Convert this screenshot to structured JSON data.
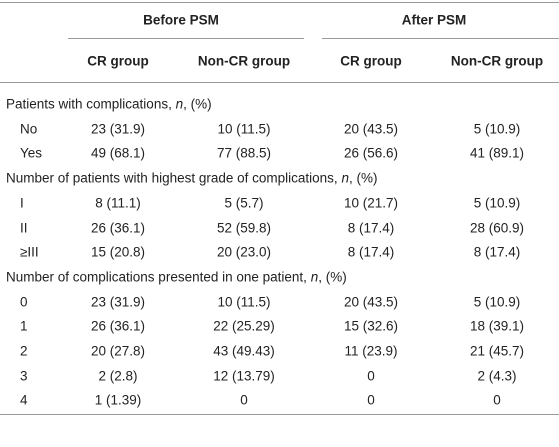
{
  "header": {
    "groups": [
      "Before PSM",
      "After PSM"
    ],
    "columns": [
      "CR group",
      "Non-CR group",
      "CR group",
      "Non-CR group"
    ]
  },
  "sections": [
    {
      "title": [
        "Patients with complications, ",
        "n",
        ", (%)"
      ],
      "rows": [
        {
          "label": "No",
          "cells": [
            "23 (31.9)",
            "10 (11.5)",
            "20 (43.5)",
            "5 (10.9)"
          ]
        },
        {
          "label": "Yes",
          "cells": [
            "49 (68.1)",
            "77 (88.5)",
            "26 (56.6)",
            "41 (89.1)"
          ]
        }
      ]
    },
    {
      "title": [
        "Number of patients with highest grade of complications, ",
        "n",
        ", (%)"
      ],
      "rows": [
        {
          "label": "I",
          "cells": [
            "8 (11.1)",
            "5 (5.7)",
            "10 (21.7)",
            "5 (10.9)"
          ]
        },
        {
          "label": "II",
          "cells": [
            "26 (36.1)",
            "52 (59.8)",
            "8 (17.4)",
            "28 (60.9)"
          ]
        },
        {
          "label": "≥III",
          "cells": [
            "15 (20.8)",
            "20 (23.0)",
            "8 (17.4)",
            "8 (17.4)"
          ]
        }
      ]
    },
    {
      "title": [
        "Number of complications presented in one patient, ",
        "n",
        ", (%)"
      ],
      "rows": [
        {
          "label": "0",
          "cells": [
            "23 (31.9)",
            "10 (11.5)",
            "20 (43.5)",
            "5 (10.9)"
          ]
        },
        {
          "label": "1",
          "cells": [
            "26 (36.1)",
            "22 (25.29)",
            "15 (32.6)",
            "18 (39.1)"
          ]
        },
        {
          "label": "2",
          "cells": [
            "20 (27.8)",
            "43 (49.43)",
            "11 (23.9)",
            "21 (45.7)"
          ]
        },
        {
          "label": "3",
          "cells": [
            "2 (2.8)",
            "12 (13.79)",
            "0",
            "2 (4.3)"
          ]
        },
        {
          "label": "4",
          "cells": [
            "1 (1.39)",
            "0",
            "0",
            "0"
          ]
        }
      ]
    }
  ]
}
